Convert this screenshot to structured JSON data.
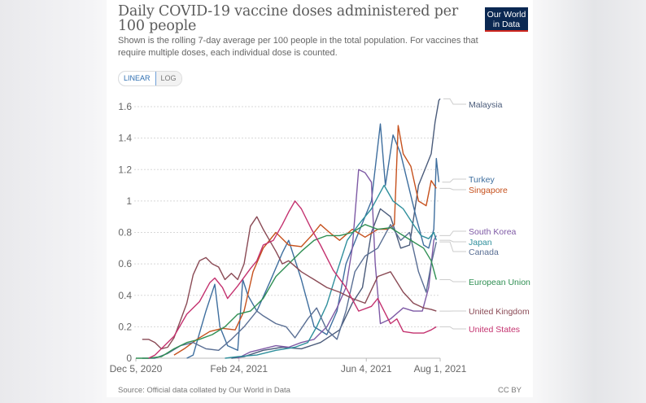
{
  "header": {
    "title": "Daily COVID-19 vaccine doses administered per 100 people",
    "subtitle": "Shown is the rolling 7-day average per 100 people in the total population. For vaccines that require multiple doses, each individual dose is counted.",
    "logo_line1": "Our World",
    "logo_line2": "in Data"
  },
  "toggle": {
    "linear_label": "LINEAR",
    "log_label": "LOG",
    "selected": "LINEAR"
  },
  "footer": {
    "source": "Source: Official data collated by Our World in Data",
    "license": "CC BY"
  },
  "colors": {
    "logo_bg": "#0b2852",
    "logo_accent": "#ce261e",
    "toggle_active": "#2f6fb1"
  },
  "chart_data": {
    "type": "line",
    "title": "Daily COVID-19 vaccine doses administered per 100 people",
    "xlabel": "",
    "ylabel": "",
    "x_unit": "days since Dec 5, 2020",
    "x_range_dates": [
      "Dec 5, 2020",
      "Aug 1, 2021"
    ],
    "xlim": [
      0,
      239
    ],
    "ylim": [
      0,
      1.65
    ],
    "x_ticks": [
      {
        "day": 0,
        "label": "Dec 5, 2020"
      },
      {
        "day": 81,
        "label": "Feb 24, 2021"
      },
      {
        "day": 181,
        "label": "Jun 4, 2021"
      },
      {
        "day": 239,
        "label": "Aug 1, 2021"
      }
    ],
    "y_ticks": [
      0,
      0.2,
      0.4,
      0.6,
      0.8,
      1,
      1.2,
      1.4,
      1.6
    ],
    "y_tick_labels": [
      "0",
      "0.2",
      "0.4",
      "0.6",
      "0.8",
      "1",
      "1.2",
      "1.4",
      "1.6"
    ],
    "grid": true,
    "legend": "right (end-of-line labels)",
    "series": [
      {
        "name": "Malaysia",
        "color": "#4a5b7a",
        "points": [
          [
            75,
            0
          ],
          [
            85,
            0.01
          ],
          [
            100,
            0.05
          ],
          [
            115,
            0.07
          ],
          [
            130,
            0.06
          ],
          [
            145,
            0.1
          ],
          [
            160,
            0.18
          ],
          [
            170,
            0.35
          ],
          [
            178,
            0.45
          ],
          [
            185,
            0.8
          ],
          [
            192,
            0.95
          ],
          [
            200,
            0.9
          ],
          [
            208,
            0.7
          ],
          [
            215,
            0.72
          ],
          [
            222,
            1.1
          ],
          [
            228,
            1.22
          ],
          [
            232,
            1.3
          ],
          [
            235,
            1.5
          ],
          [
            238,
            1.64
          ],
          [
            239,
            1.65
          ]
        ]
      },
      {
        "name": "Turkey",
        "color": "#3e6e9e",
        "points": [
          [
            40,
            0
          ],
          [
            45,
            0.02
          ],
          [
            55,
            0.3
          ],
          [
            62,
            0.47
          ],
          [
            66,
            0.2
          ],
          [
            72,
            0.08
          ],
          [
            80,
            0.05
          ],
          [
            84,
            0.5
          ],
          [
            88,
            0.4
          ],
          [
            95,
            0.3
          ],
          [
            105,
            0.48
          ],
          [
            115,
            0.67
          ],
          [
            120,
            0.75
          ],
          [
            130,
            0.5
          ],
          [
            140,
            0.2
          ],
          [
            150,
            0.15
          ],
          [
            158,
            0.3
          ],
          [
            165,
            0.6
          ],
          [
            175,
            0.8
          ],
          [
            185,
            1.0
          ],
          [
            192,
            1.49
          ],
          [
            196,
            1.1
          ],
          [
            202,
            1.42
          ],
          [
            208,
            1.3
          ],
          [
            214,
            1.1
          ],
          [
            220,
            0.9
          ],
          [
            226,
            0.72
          ],
          [
            230,
            0.7
          ],
          [
            234,
            0.82
          ],
          [
            236,
            1.27
          ],
          [
            238,
            1.12
          ]
        ]
      },
      {
        "name": "Singapore",
        "color": "#c6511d",
        "points": [
          [
            30,
            0.02
          ],
          [
            38,
            0.06
          ],
          [
            48,
            0.12
          ],
          [
            58,
            0.17
          ],
          [
            68,
            0.19
          ],
          [
            78,
            0.18
          ],
          [
            85,
            0.3
          ],
          [
            92,
            0.55
          ],
          [
            100,
            0.7
          ],
          [
            110,
            0.8
          ],
          [
            120,
            0.72
          ],
          [
            130,
            0.71
          ],
          [
            138,
            0.78
          ],
          [
            145,
            0.85
          ],
          [
            152,
            0.8
          ],
          [
            160,
            0.75
          ],
          [
            170,
            0.82
          ],
          [
            180,
            0.77
          ],
          [
            190,
            0.82
          ],
          [
            198,
            0.82
          ],
          [
            203,
            0.85
          ],
          [
            206,
            1.48
          ],
          [
            210,
            1.3
          ],
          [
            216,
            1.22
          ],
          [
            222,
            1.0
          ],
          [
            228,
            0.97
          ],
          [
            232,
            1.13
          ],
          [
            236,
            1.08
          ]
        ]
      },
      {
        "name": "South Korea",
        "color": "#7e5aa5",
        "points": [
          [
            80,
            0
          ],
          [
            90,
            0.04
          ],
          [
            100,
            0.06
          ],
          [
            110,
            0.08
          ],
          [
            120,
            0.07
          ],
          [
            130,
            0.1
          ],
          [
            140,
            0.12
          ],
          [
            150,
            0.2
          ],
          [
            158,
            0.32
          ],
          [
            165,
            0.45
          ],
          [
            170,
            0.7
          ],
          [
            175,
            1.2
          ],
          [
            180,
            1.18
          ],
          [
            185,
            1.12
          ],
          [
            188,
            0.6
          ],
          [
            192,
            0.22
          ],
          [
            200,
            0.25
          ],
          [
            210,
            0.32
          ],
          [
            218,
            0.3
          ],
          [
            225,
            0.3
          ],
          [
            230,
            0.45
          ],
          [
            234,
            0.75
          ],
          [
            236,
            0.78
          ]
        ]
      },
      {
        "name": "Japan",
        "color": "#2f8f9c",
        "points": [
          [
            70,
            0
          ],
          [
            80,
            0.01
          ],
          [
            95,
            0.02
          ],
          [
            110,
            0.05
          ],
          [
            125,
            0.07
          ],
          [
            135,
            0.1
          ],
          [
            142,
            0.2
          ],
          [
            150,
            0.34
          ],
          [
            158,
            0.55
          ],
          [
            166,
            0.75
          ],
          [
            175,
            0.85
          ],
          [
            185,
            0.95
          ],
          [
            195,
            1.1
          ],
          [
            202,
            1.0
          ],
          [
            210,
            0.95
          ],
          [
            218,
            0.85
          ],
          [
            224,
            0.78
          ],
          [
            230,
            0.76
          ],
          [
            234,
            0.8
          ],
          [
            236,
            0.75
          ]
        ]
      },
      {
        "name": "Canada",
        "color": "#5a6f94",
        "points": [
          [
            5,
            0
          ],
          [
            15,
            0
          ],
          [
            25,
            0.03
          ],
          [
            35,
            0.08
          ],
          [
            45,
            0.1
          ],
          [
            55,
            0.06
          ],
          [
            65,
            0.05
          ],
          [
            75,
            0.12
          ],
          [
            85,
            0.2
          ],
          [
            95,
            0.3
          ],
          [
            100,
            0.27
          ],
          [
            110,
            0.22
          ],
          [
            118,
            0.2
          ],
          [
            125,
            0.13
          ],
          [
            135,
            0.25
          ],
          [
            142,
            0.32
          ],
          [
            150,
            0.18
          ],
          [
            158,
            0.12
          ],
          [
            165,
            0.3
          ],
          [
            172,
            0.55
          ],
          [
            180,
            0.65
          ],
          [
            190,
            0.7
          ],
          [
            200,
            0.85
          ],
          [
            208,
            0.75
          ],
          [
            215,
            0.8
          ],
          [
            222,
            0.55
          ],
          [
            228,
            0.42
          ],
          [
            232,
            0.6
          ],
          [
            236,
            0.74
          ]
        ]
      },
      {
        "name": "European Union",
        "color": "#2f8f53",
        "points": [
          [
            0,
            0
          ],
          [
            10,
            0
          ],
          [
            20,
            0.01
          ],
          [
            30,
            0.06
          ],
          [
            40,
            0.1
          ],
          [
            50,
            0.12
          ],
          [
            60,
            0.15
          ],
          [
            70,
            0.2
          ],
          [
            80,
            0.28
          ],
          [
            90,
            0.3
          ],
          [
            100,
            0.38
          ],
          [
            110,
            0.52
          ],
          [
            120,
            0.6
          ],
          [
            130,
            0.68
          ],
          [
            140,
            0.75
          ],
          [
            150,
            0.78
          ],
          [
            160,
            0.78
          ],
          [
            170,
            0.8
          ],
          [
            180,
            0.85
          ],
          [
            190,
            0.82
          ],
          [
            200,
            0.83
          ],
          [
            210,
            0.78
          ],
          [
            218,
            0.74
          ],
          [
            226,
            0.7
          ],
          [
            232,
            0.62
          ],
          [
            236,
            0.5
          ]
        ]
      },
      {
        "name": "United Kingdom",
        "color": "#8a4a55",
        "points": [
          [
            5,
            0.12
          ],
          [
            10,
            0.12
          ],
          [
            15,
            0.1
          ],
          [
            20,
            0.06
          ],
          [
            25,
            0.07
          ],
          [
            30,
            0.13
          ],
          [
            35,
            0.24
          ],
          [
            40,
            0.35
          ],
          [
            45,
            0.53
          ],
          [
            50,
            0.62
          ],
          [
            55,
            0.64
          ],
          [
            60,
            0.6
          ],
          [
            65,
            0.58
          ],
          [
            70,
            0.5
          ],
          [
            75,
            0.54
          ],
          [
            80,
            0.5
          ],
          [
            85,
            0.6
          ],
          [
            90,
            0.84
          ],
          [
            95,
            0.9
          ],
          [
            100,
            0.82
          ],
          [
            105,
            0.75
          ],
          [
            110,
            0.68
          ],
          [
            115,
            0.6
          ],
          [
            120,
            0.62
          ],
          [
            130,
            0.55
          ],
          [
            140,
            0.5
          ],
          [
            150,
            0.45
          ],
          [
            160,
            0.42
          ],
          [
            170,
            0.38
          ],
          [
            180,
            0.35
          ],
          [
            190,
            0.52
          ],
          [
            200,
            0.55
          ],
          [
            210,
            0.42
          ],
          [
            218,
            0.35
          ],
          [
            226,
            0.32
          ],
          [
            232,
            0.31
          ],
          [
            236,
            0.3
          ]
        ]
      },
      {
        "name": "United States",
        "color": "#c4326f",
        "points": [
          [
            10,
            0
          ],
          [
            15,
            0.02
          ],
          [
            20,
            0.06
          ],
          [
            25,
            0.1
          ],
          [
            30,
            0.14
          ],
          [
            40,
            0.28
          ],
          [
            50,
            0.36
          ],
          [
            58,
            0.48
          ],
          [
            62,
            0.51
          ],
          [
            68,
            0.45
          ],
          [
            72,
            0.38
          ],
          [
            80,
            0.46
          ],
          [
            90,
            0.57
          ],
          [
            95,
            0.62
          ],
          [
            100,
            0.72
          ],
          [
            108,
            0.75
          ],
          [
            115,
            0.85
          ],
          [
            120,
            0.93
          ],
          [
            125,
            1.0
          ],
          [
            130,
            0.95
          ],
          [
            138,
            0.82
          ],
          [
            145,
            0.72
          ],
          [
            155,
            0.56
          ],
          [
            165,
            0.45
          ],
          [
            175,
            0.3
          ],
          [
            185,
            0.33
          ],
          [
            190,
            0.38
          ],
          [
            195,
            0.3
          ],
          [
            200,
            0.22
          ],
          [
            205,
            0.25
          ],
          [
            210,
            0.17
          ],
          [
            218,
            0.16
          ],
          [
            226,
            0.16
          ],
          [
            232,
            0.18
          ],
          [
            236,
            0.2
          ]
        ]
      }
    ]
  }
}
